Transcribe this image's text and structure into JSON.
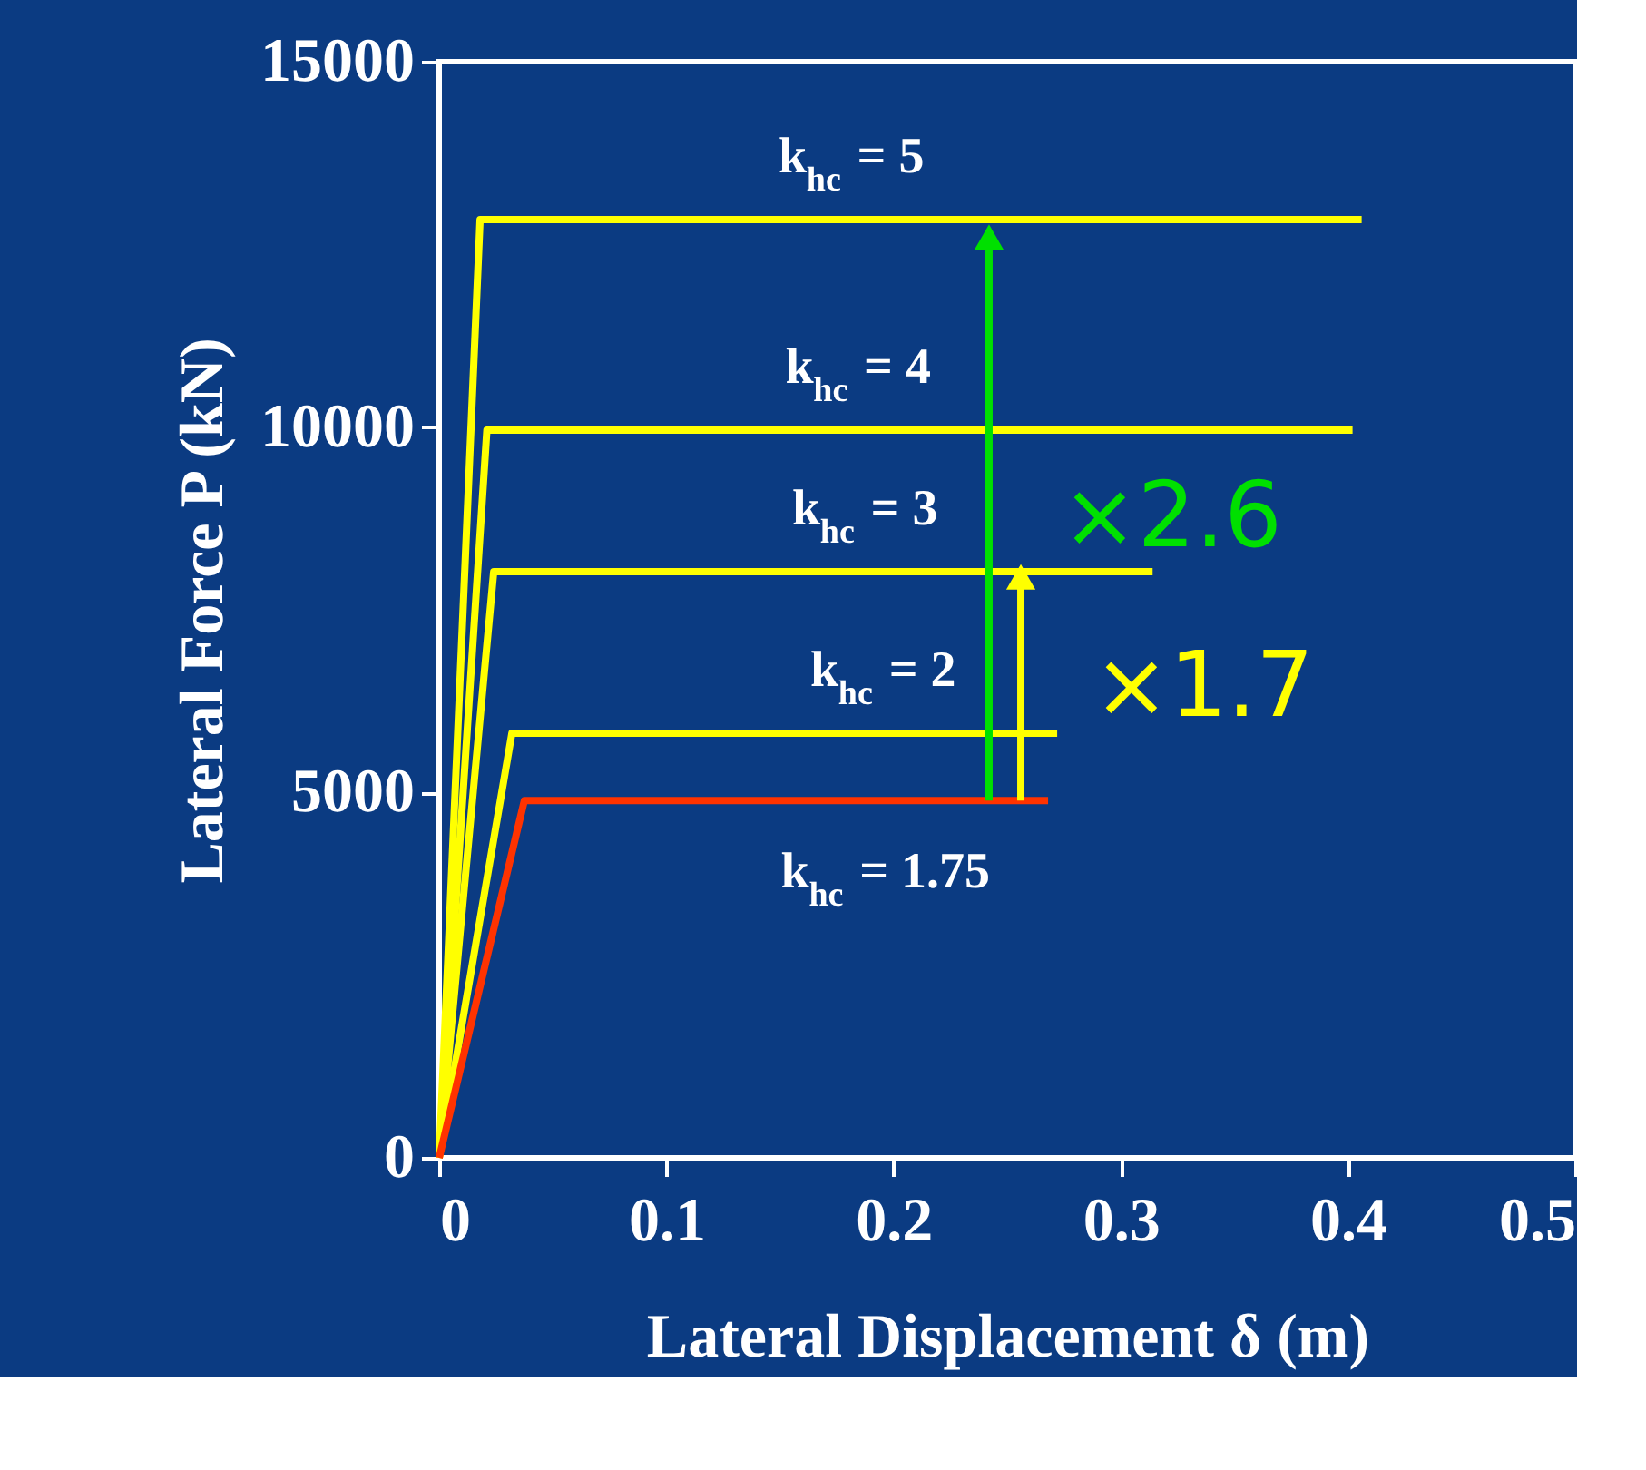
{
  "chart_data": {
    "type": "line",
    "xlabel": "Lateral Displacement  δ (m)",
    "ylabel": "Lateral Force  P (kN)",
    "xlim": [
      0,
      0.5
    ],
    "xticks": [
      0,
      0.1,
      0.2,
      0.3,
      0.4,
      0.5
    ],
    "ylim": [
      0,
      15000
    ],
    "yticks": [
      0,
      5000,
      10000,
      15000
    ],
    "grid": false,
    "marker": "none",
    "line_style": "solid",
    "series": [
      {
        "color": "#ffff00",
        "x": [
          0,
          0.018,
          0.406
        ],
        "values": [
          0,
          12840,
          12840
        ]
      },
      {
        "color": "#ffff00",
        "x": [
          0,
          0.021,
          0.402
        ],
        "values": [
          0,
          9960,
          9960
        ]
      },
      {
        "color": "#ffff00",
        "x": [
          0,
          0.024,
          0.314
        ],
        "values": [
          0,
          8020,
          8020
        ]
      },
      {
        "color": "#ffff00",
        "x": [
          0,
          0.032,
          0.272
        ],
        "values": [
          0,
          5810,
          5810
        ]
      },
      {
        "color": "#ff3300",
        "x": [
          0,
          0.0375,
          0.268
        ],
        "values": [
          0,
          4890,
          4890
        ]
      },
      {
        "color": "#00e000",
        "marker": "triangle",
        "x": [
          0.242,
          0.242
        ],
        "values": [
          4890,
          12600
        ]
      },
      {
        "color": "#ffff00",
        "marker": "triangle",
        "x": [
          0.256,
          0.256
        ],
        "values": [
          4890,
          7950
        ]
      }
    ],
    "annotations": [
      "k$_{hc}$ = 5",
      "k$_{hc}$ = 4",
      "k$_{hc}$ = 3",
      "k$_{hc}$ = 2",
      "k$_{hc}$ = 1.75",
      "×2.6",
      "×1.7"
    ]
  }
}
